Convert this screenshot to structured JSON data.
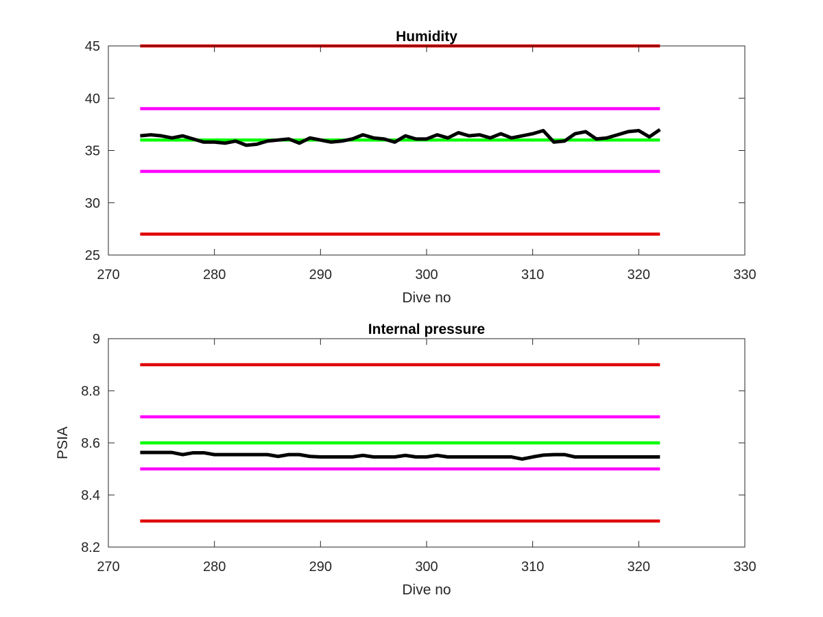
{
  "chart_data": [
    {
      "type": "line",
      "title": "Humidity",
      "xlabel": "Dive no",
      "ylabel": "",
      "xlim": [
        270,
        330
      ],
      "ylim": [
        25,
        45
      ],
      "xticks": [
        270,
        280,
        290,
        300,
        310,
        320,
        330
      ],
      "yticks": [
        25,
        30,
        35,
        40,
        45
      ],
      "grid": false,
      "series": [
        {
          "role": "upper-red-limit",
          "color": "#e00000",
          "x": [
            273,
            322
          ],
          "y": [
            45,
            45
          ]
        },
        {
          "role": "upper-magenta-limit",
          "color": "#ff00ff",
          "x": [
            273,
            322
          ],
          "y": [
            39,
            39
          ]
        },
        {
          "role": "green-nominal",
          "color": "#00ff00",
          "x": [
            273,
            322
          ],
          "y": [
            36,
            36
          ]
        },
        {
          "role": "lower-magenta-limit",
          "color": "#ff00ff",
          "x": [
            273,
            322
          ],
          "y": [
            33,
            33
          ]
        },
        {
          "role": "lower-red-limit",
          "color": "#e00000",
          "x": [
            273,
            322
          ],
          "y": [
            27,
            27
          ]
        },
        {
          "role": "measured",
          "color": "#000000",
          "x": [
            273,
            274,
            275,
            276,
            277,
            278,
            279,
            280,
            281,
            282,
            283,
            284,
            285,
            286,
            287,
            288,
            289,
            290,
            291,
            292,
            293,
            294,
            295,
            296,
            297,
            298,
            299,
            300,
            301,
            302,
            303,
            304,
            305,
            306,
            307,
            308,
            309,
            310,
            311,
            312,
            313,
            314,
            315,
            316,
            317,
            318,
            319,
            320,
            321,
            322
          ],
          "y": [
            36.4,
            36.5,
            36.4,
            36.2,
            36.4,
            36.1,
            35.8,
            35.8,
            35.7,
            35.9,
            35.5,
            35.6,
            35.9,
            36.0,
            36.1,
            35.7,
            36.2,
            36.0,
            35.8,
            35.9,
            36.1,
            36.5,
            36.2,
            36.1,
            35.8,
            36.4,
            36.1,
            36.1,
            36.5,
            36.2,
            36.7,
            36.4,
            36.5,
            36.2,
            36.6,
            36.2,
            36.4,
            36.6,
            36.9,
            35.8,
            35.9,
            36.6,
            36.8,
            36.1,
            36.2,
            36.5,
            36.8,
            36.9,
            36.3,
            37.0
          ]
        }
      ]
    },
    {
      "type": "line",
      "title": "Internal pressure",
      "xlabel": "Dive no",
      "ylabel": "PSIA",
      "xlim": [
        270,
        330
      ],
      "ylim": [
        8.2,
        9.0
      ],
      "xticks": [
        270,
        280,
        290,
        300,
        310,
        320,
        330
      ],
      "yticks": [
        8.2,
        8.4,
        8.6,
        8.8,
        9
      ],
      "ytick_labels": [
        "8.2",
        "8.4",
        "8.6",
        "8.8",
        "9"
      ],
      "grid": false,
      "series": [
        {
          "role": "upper-red-limit",
          "color": "#e00000",
          "x": [
            273,
            322
          ],
          "y": [
            8.9,
            8.9
          ]
        },
        {
          "role": "upper-magenta-limit",
          "color": "#ff00ff",
          "x": [
            273,
            322
          ],
          "y": [
            8.7,
            8.7
          ]
        },
        {
          "role": "green-nominal",
          "color": "#00ff00",
          "x": [
            273,
            322
          ],
          "y": [
            8.6,
            8.6
          ]
        },
        {
          "role": "lower-magenta-limit",
          "color": "#ff00ff",
          "x": [
            273,
            322
          ],
          "y": [
            8.5,
            8.5
          ]
        },
        {
          "role": "lower-red-limit",
          "color": "#e00000",
          "x": [
            273,
            322
          ],
          "y": [
            8.3,
            8.3
          ]
        },
        {
          "role": "measured",
          "color": "#000000",
          "x": [
            273,
            274,
            275,
            276,
            277,
            278,
            279,
            280,
            281,
            282,
            283,
            284,
            285,
            286,
            287,
            288,
            289,
            290,
            291,
            292,
            293,
            294,
            295,
            296,
            297,
            298,
            299,
            300,
            301,
            302,
            303,
            304,
            305,
            306,
            307,
            308,
            309,
            310,
            311,
            312,
            313,
            314,
            315,
            316,
            317,
            318,
            319,
            320,
            321,
            322
          ],
          "y": [
            8.563,
            8.563,
            8.563,
            8.563,
            8.555,
            8.562,
            8.562,
            8.555,
            8.555,
            8.555,
            8.555,
            8.555,
            8.555,
            8.548,
            8.555,
            8.555,
            8.548,
            8.546,
            8.546,
            8.546,
            8.546,
            8.552,
            8.546,
            8.546,
            8.546,
            8.552,
            8.546,
            8.546,
            8.552,
            8.546,
            8.546,
            8.546,
            8.546,
            8.546,
            8.546,
            8.546,
            8.538,
            8.546,
            8.553,
            8.555,
            8.555,
            8.546,
            8.546,
            8.546,
            8.546,
            8.546,
            8.546,
            8.546,
            8.546,
            8.546
          ]
        }
      ]
    }
  ]
}
